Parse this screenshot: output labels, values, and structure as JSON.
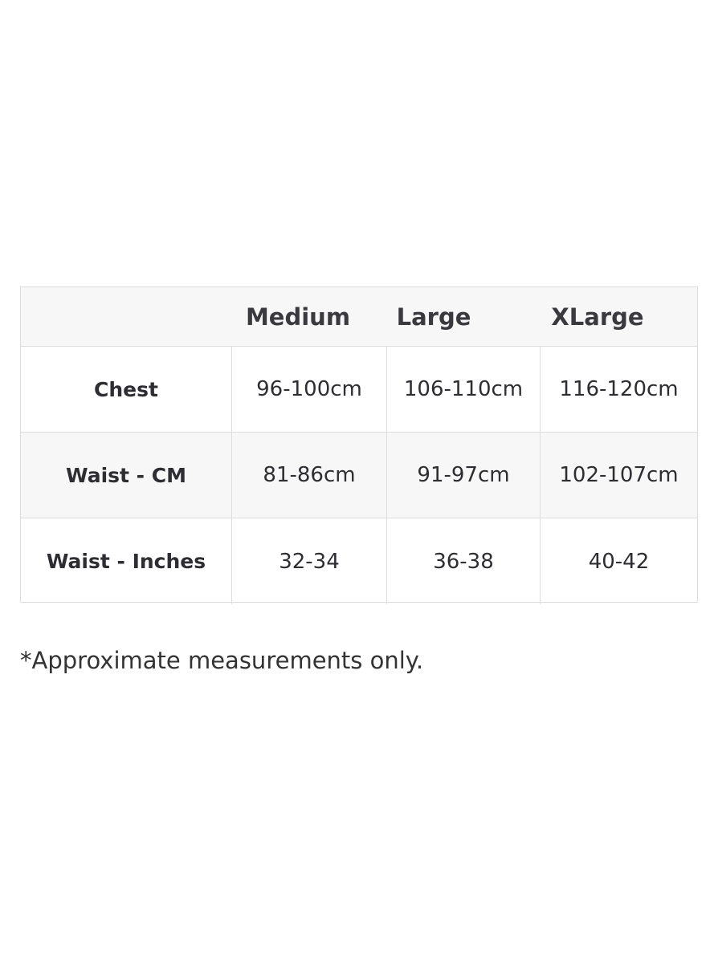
{
  "size_chart": {
    "columns": [
      "",
      "Medium",
      "Large",
      "XLarge"
    ],
    "rows": [
      {
        "label": "Chest",
        "values": [
          "96-100cm",
          "106-110cm",
          "116-120cm"
        ]
      },
      {
        "label": "Waist - CM",
        "values": [
          "81-86cm",
          "91-97cm",
          "102-107cm"
        ]
      },
      {
        "label": "Waist - Inches",
        "values": [
          "32-34",
          "36-38",
          "40-42"
        ]
      }
    ]
  },
  "footnote": "*Approximate measurements only."
}
